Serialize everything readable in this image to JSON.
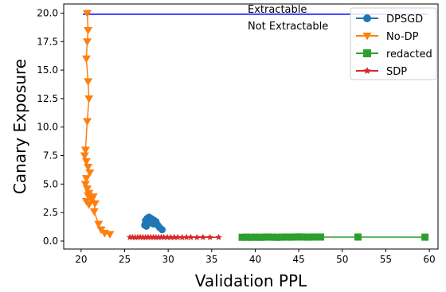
{
  "chart_data": {
    "type": "line",
    "title": "",
    "xlabel": "Validation PPL",
    "ylabel": "Canary Exposure",
    "xlim": [
      18,
      61
    ],
    "ylim": [
      -0.7,
      20.8
    ],
    "x_ticks": [
      "20",
      "25",
      "30",
      "35",
      "40",
      "45",
      "50",
      "55",
      "60"
    ],
    "y_ticks": [
      "0.0",
      "2.5",
      "5.0",
      "7.5",
      "10.0",
      "12.5",
      "15.0",
      "17.5",
      "20.0"
    ],
    "grid": false,
    "legend_position": "top-right",
    "reference_line": {
      "y": 19.9,
      "x_range": [
        20.2,
        59.8
      ],
      "color": "#0000ff",
      "label_above": "Extractable",
      "label_below": "Not Extractable"
    },
    "series": [
      {
        "name": "DPSGD",
        "color": "#1f77b4",
        "marker": "circle",
        "x": [
          27.3,
          27.4,
          27.6,
          27.8,
          28.0,
          28.2,
          28.4,
          28.6,
          28.8,
          29.0,
          29.3,
          28.3,
          27.9,
          27.5
        ],
        "y": [
          1.4,
          1.8,
          2.0,
          2.1,
          2.0,
          1.9,
          1.8,
          1.7,
          1.4,
          1.2,
          1.0,
          1.5,
          1.6,
          1.3
        ]
      },
      {
        "name": "No-DP",
        "color": "#ff7f0e",
        "marker": "triangle-down",
        "x": [
          20.7,
          20.8,
          20.7,
          20.6,
          20.8,
          20.9,
          20.7,
          20.5,
          20.4,
          20.6,
          20.8,
          21.0,
          20.6,
          20.5,
          20.7,
          20.9,
          20.8,
          21.1,
          20.6,
          20.9,
          21.2,
          21.4,
          21.6,
          21.5,
          22.0,
          22.3,
          22.7,
          23.3
        ],
        "y": [
          20.0,
          18.5,
          17.5,
          16.0,
          14.0,
          12.5,
          10.5,
          8.0,
          7.5,
          7.0,
          6.5,
          6.0,
          5.5,
          5.0,
          4.6,
          4.2,
          4.0,
          3.8,
          3.5,
          3.2,
          3.6,
          3.9,
          3.3,
          2.6,
          1.5,
          1.0,
          0.7,
          0.6
        ]
      },
      {
        "name": "redacted",
        "color": "#2ca02c",
        "marker": "square",
        "x": [
          38.5,
          39.0,
          39.5,
          40.0,
          40.5,
          41.0,
          41.5,
          42.0,
          42.5,
          43.0,
          43.5,
          44.0,
          44.5,
          45.0,
          45.5,
          46.0,
          46.5,
          47.0,
          47.5,
          51.8,
          59.5
        ],
        "y": [
          0.33,
          0.34,
          0.33,
          0.34,
          0.33,
          0.34,
          0.35,
          0.34,
          0.33,
          0.34,
          0.35,
          0.34,
          0.35,
          0.36,
          0.35,
          0.34,
          0.35,
          0.35,
          0.35,
          0.35,
          0.34
        ]
      },
      {
        "name": "SDP",
        "color": "#d62728",
        "marker": "star",
        "x": [
          25.6,
          25.9,
          26.2,
          26.5,
          26.8,
          27.1,
          27.4,
          27.7,
          28.0,
          28.3,
          28.6,
          28.9,
          29.2,
          29.5,
          29.9,
          30.3,
          30.7,
          31.1,
          31.6,
          32.1,
          32.6,
          33.3,
          34.0,
          34.8,
          35.8
        ],
        "y": [
          0.33,
          0.34,
          0.32,
          0.33,
          0.34,
          0.33,
          0.32,
          0.33,
          0.34,
          0.33,
          0.32,
          0.33,
          0.34,
          0.33,
          0.33,
          0.32,
          0.33,
          0.33,
          0.32,
          0.33,
          0.33,
          0.32,
          0.33,
          0.33,
          0.33
        ]
      }
    ]
  }
}
